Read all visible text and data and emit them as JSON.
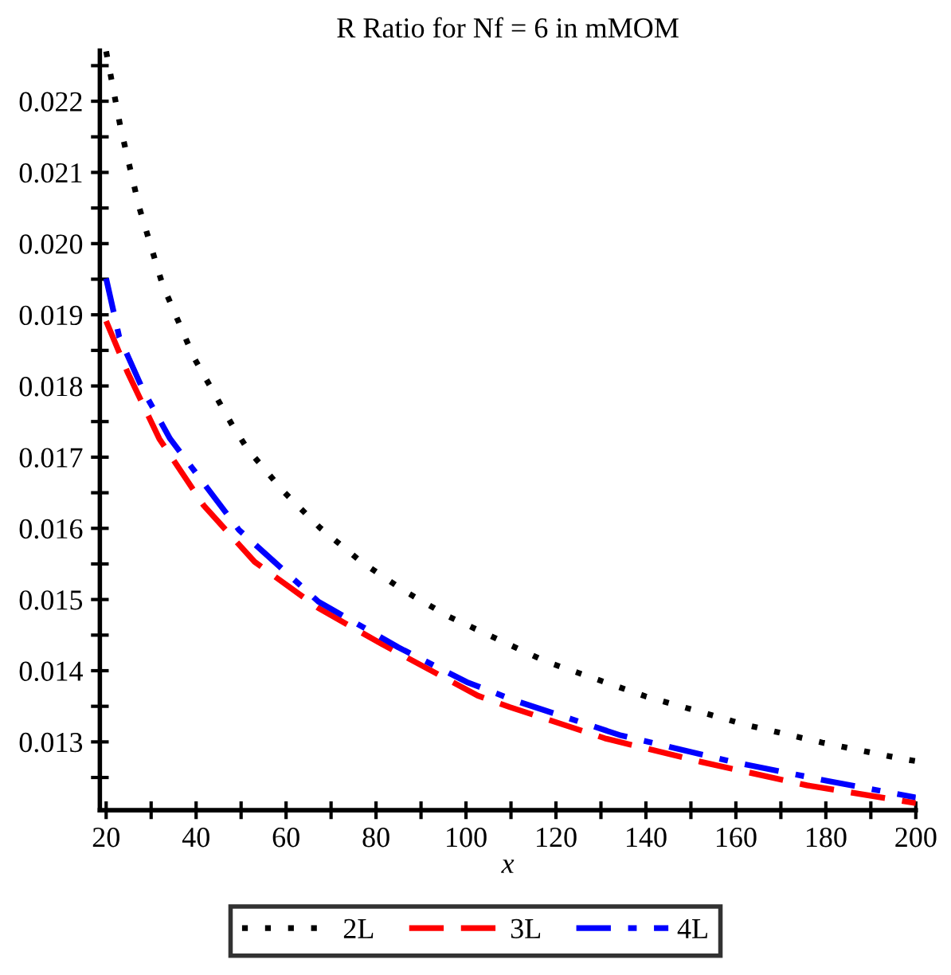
{
  "chart_data": {
    "type": "line",
    "title": "R Ratio for Nf = 6 in mMOM",
    "xlabel": "x",
    "xlim": [
      18.6,
      200
    ],
    "ylim": [
      0.01204,
      0.02271
    ],
    "xticks": [
      20,
      {
        "value": 30,
        "label": null
      },
      40,
      {
        "value": 50,
        "label": null
      },
      60,
      {
        "value": 70,
        "label": null
      },
      80,
      {
        "value": 90,
        "label": null
      },
      100,
      {
        "value": 110,
        "label": null
      },
      120,
      {
        "value": 130,
        "label": null
      },
      140,
      {
        "value": 150,
        "label": null
      },
      160,
      {
        "value": 170,
        "label": null
      },
      180,
      {
        "value": 190,
        "label": null
      },
      200
    ],
    "yticks": [
      {
        "value": 0.0125,
        "label": null
      },
      0.013,
      {
        "value": 0.0135,
        "label": null
      },
      0.014,
      {
        "value": 0.0145,
        "label": null
      },
      0.015,
      {
        "value": 0.0155,
        "label": null
      },
      0.016,
      {
        "value": 0.0165,
        "label": null
      },
      0.017,
      {
        "value": 0.0175,
        "label": null
      },
      0.018,
      {
        "value": 0.0185,
        "label": null
      },
      0.019,
      {
        "value": 0.0195,
        "label": null
      },
      {
        "value": 0.02,
        "label": "0.020"
      },
      {
        "value": 0.0205,
        "label": null
      },
      0.021,
      {
        "value": 0.0215,
        "label": null
      },
      0.022,
      {
        "value": 0.0225,
        "label": null
      }
    ],
    "grid": false,
    "legend": "bottom",
    "series": [
      {
        "name": "2L",
        "color": "#000000",
        "line_style": "dotted",
        "x": [
          20,
          23.2,
          27.3,
          32.5,
          39.5,
          48.3,
          51.5,
          59.4,
          67.5,
          76.7,
          86.3,
          96.2,
          117.7,
          139.9,
          162.2,
          179.2,
          196.3,
          200
        ],
        "values": [
          0.0227,
          0.02163,
          0.02052,
          0.01943,
          0.0184,
          0.01742,
          0.01711,
          0.01652,
          0.01601,
          0.01553,
          0.01512,
          0.01476,
          0.01413,
          0.01364,
          0.01324,
          0.01299,
          0.01277,
          0.01273
        ]
      },
      {
        "name": "3L",
        "color": "#ff0000",
        "line_style": "dashed",
        "x": [
          20,
          24.7,
          31.8,
          41.7,
          53,
          67.2,
          81.4,
          102.6,
          109.7,
          130.9,
          152.2,
          175.8,
          200
        ],
        "values": [
          0.01891,
          0.0182,
          0.01726,
          0.01632,
          0.01553,
          0.01488,
          0.01437,
          0.01365,
          0.01349,
          0.01305,
          0.01272,
          0.01239,
          0.01214
        ]
      },
      {
        "name": "4L",
        "color": "#0000ff",
        "line_style": "dashdot",
        "x": [
          20,
          22.9,
          28.3,
          34.2,
          49.5,
          67.2,
          84.9,
          100.2,
          110.9,
          134.5,
          159.3,
          180.5,
          200
        ],
        "values": [
          0.01951,
          0.01869,
          0.01793,
          0.01726,
          0.01598,
          0.01497,
          0.01433,
          0.01384,
          0.01358,
          0.01309,
          0.01272,
          0.01245,
          0.01222
        ]
      }
    ]
  }
}
